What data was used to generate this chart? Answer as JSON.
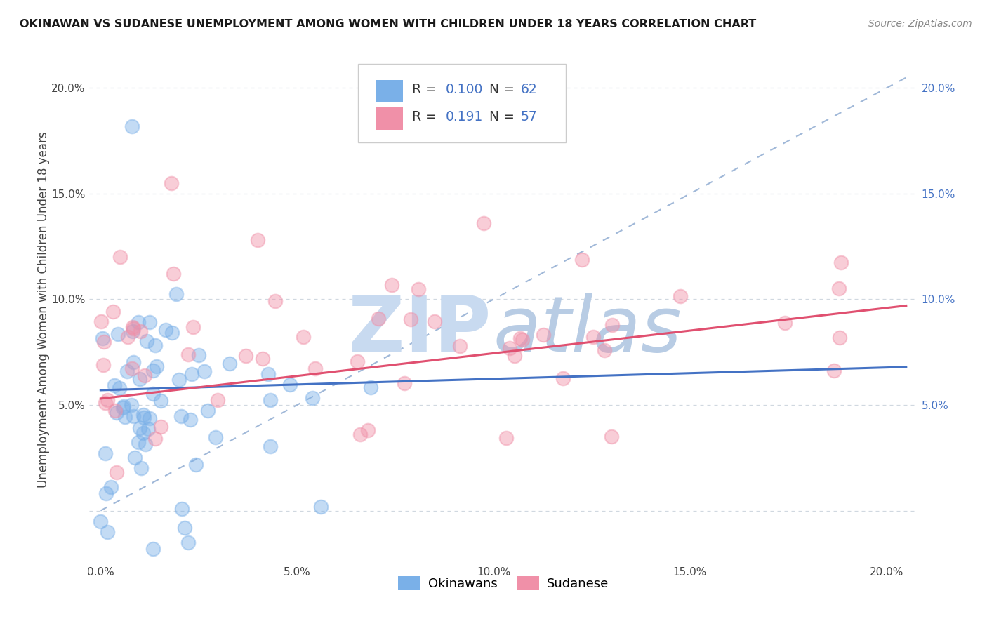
{
  "title": "OKINAWAN VS SUDANESE UNEMPLOYMENT AMONG WOMEN WITH CHILDREN UNDER 18 YEARS CORRELATION CHART",
  "source": "Source: ZipAtlas.com",
  "ylabel": "Unemployment Among Women with Children Under 18 years",
  "x_tick_vals": [
    0.0,
    0.05,
    0.1,
    0.15,
    0.2
  ],
  "x_tick_labels": [
    "0.0%",
    "5.0%",
    "10.0%",
    "15.0%",
    "20.0%"
  ],
  "y_tick_vals": [
    0.0,
    0.05,
    0.1,
    0.15,
    0.2
  ],
  "y_tick_labels_left": [
    "",
    "5.0%",
    "10.0%",
    "15.0%",
    "20.0%"
  ],
  "y_tick_labels_right": [
    "",
    "5.0%",
    "10.0%",
    "15.0%",
    "20.0%"
  ],
  "xlim": [
    -0.003,
    0.208
  ],
  "ylim": [
    -0.025,
    0.215
  ],
  "okinawan_R": 0.1,
  "okinawan_N": 62,
  "sudanese_R": 0.191,
  "sudanese_N": 57,
  "okinawan_color": "#7ab0e8",
  "sudanese_color": "#f090a8",
  "okinawan_line_color": "#4472c4",
  "sudanese_line_color": "#e05070",
  "dashed_line_color": "#a0b8d8",
  "legend_label_okinawan": "Okinawans",
  "legend_label_sudanese": "Sudanese",
  "background_color": "#ffffff",
  "grid_color": "#d0d8e0",
  "right_axis_color": "#4472c4",
  "title_color": "#1a1a1a",
  "source_color": "#888888",
  "watermark_zip_color": "#c8daf0",
  "watermark_atlas_color": "#b8cce4"
}
